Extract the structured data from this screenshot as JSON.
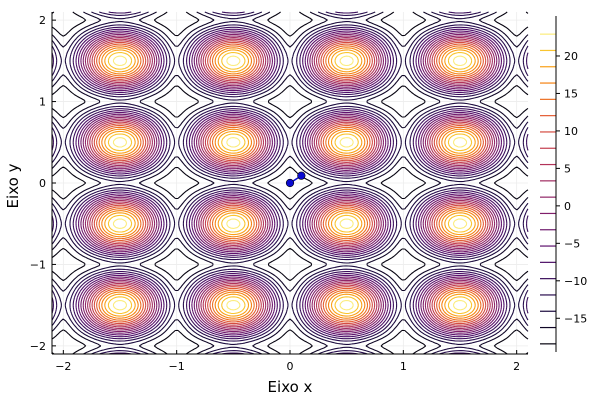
{
  "chart_data": {
    "type": "contour",
    "title": "",
    "xlabel": "Eixo x",
    "ylabel": "Eixo y",
    "xlim": [
      -2.1,
      2.1
    ],
    "ylim": [
      -2.1,
      2.1
    ],
    "xticks": [
      -2,
      -1,
      0,
      1,
      2
    ],
    "yticks": [
      -2,
      -1,
      0,
      1,
      2
    ],
    "grid": true,
    "function_note": "periodic surface with minima at integer points and maxima at half-integer points",
    "levels_min": -19.5,
    "levels_max": 24,
    "colorbar": {
      "ticks": [
        -15,
        -10,
        -5,
        0,
        5,
        10,
        15,
        20
      ],
      "colormap": "inferno-like"
    },
    "path": {
      "color": "#0a0ad0",
      "points": [
        [
          0.0,
          0.0
        ],
        [
          0.1,
          0.09
        ]
      ]
    },
    "colors": {
      "low": "#000004",
      "mid": "#b5367a",
      "high": "#fcffa4",
      "path": "#0a0ad0"
    }
  }
}
